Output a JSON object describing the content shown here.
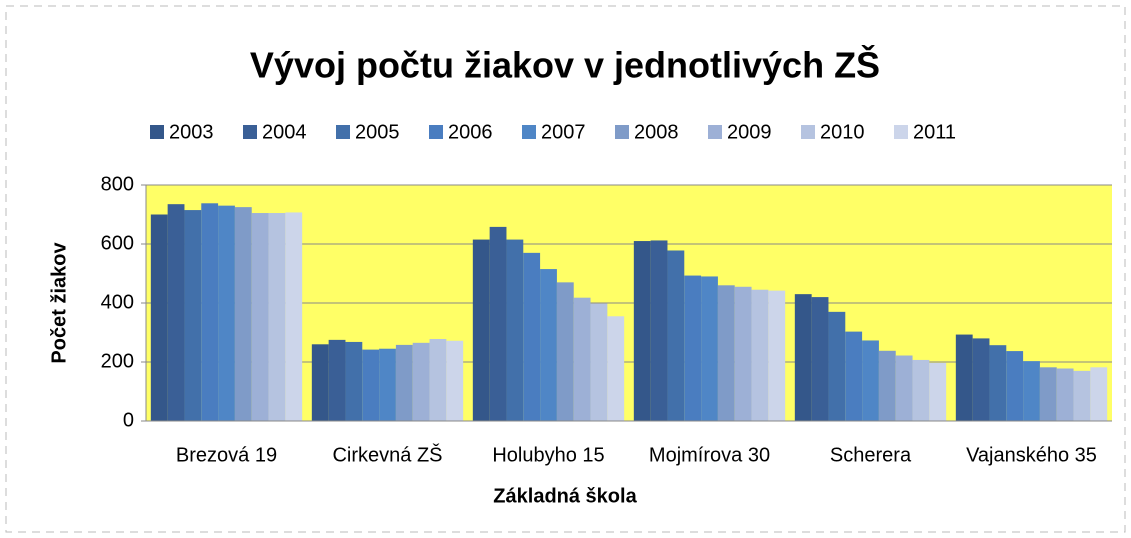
{
  "chart_data": {
    "type": "bar",
    "title": "Vývoj počtu žiakov v jednotlivých ZŠ",
    "x_label": "Základná škola",
    "y_label": "Počet žiakov",
    "categories": [
      "Brezová 19",
      "Cirkevná ZŠ",
      "Holubyho 15",
      "Mojmírova 30",
      "Scherera",
      "Vajanského 35"
    ],
    "series": [
      {
        "name": "2003",
        "color": "#34578a",
        "values": [
          700,
          260,
          615,
          610,
          430,
          293
        ]
      },
      {
        "name": "2004",
        "color": "#3a5f96",
        "values": [
          735,
          275,
          658,
          612,
          420,
          280
        ]
      },
      {
        "name": "2005",
        "color": "#4270aa",
        "values": [
          715,
          268,
          615,
          578,
          370,
          257
        ]
      },
      {
        "name": "2006",
        "color": "#4a7dc0",
        "values": [
          738,
          242,
          570,
          493,
          303,
          237
        ]
      },
      {
        "name": "2007",
        "color": "#4f86c6",
        "values": [
          730,
          245,
          515,
          490,
          273,
          203
        ]
      },
      {
        "name": "2008",
        "color": "#7f9bc8",
        "values": [
          725,
          258,
          470,
          460,
          238,
          182
        ]
      },
      {
        "name": "2009",
        "color": "#9db0d6",
        "values": [
          705,
          265,
          418,
          455,
          222,
          178
        ]
      },
      {
        "name": "2010",
        "color": "#b5c3e0",
        "values": [
          705,
          278,
          398,
          445,
          207,
          170
        ]
      },
      {
        "name": "2011",
        "color": "#ccd5ea",
        "values": [
          707,
          272,
          355,
          442,
          197,
          182
        ]
      }
    ],
    "ylim": [
      0,
      800
    ],
    "yticks": [
      0,
      200,
      400,
      600,
      800
    ],
    "grid": true,
    "legend": "top",
    "plot_background": "#ffff66"
  }
}
